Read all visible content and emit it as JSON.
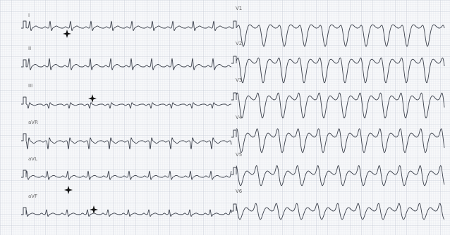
{
  "leads": {
    "limb": [
      "I",
      "II",
      "III",
      "aVR",
      "aVL",
      "aVF"
    ],
    "precordial": [
      "V1",
      "V2",
      "V3",
      "V4",
      "V5",
      "V6"
    ]
  }
}
